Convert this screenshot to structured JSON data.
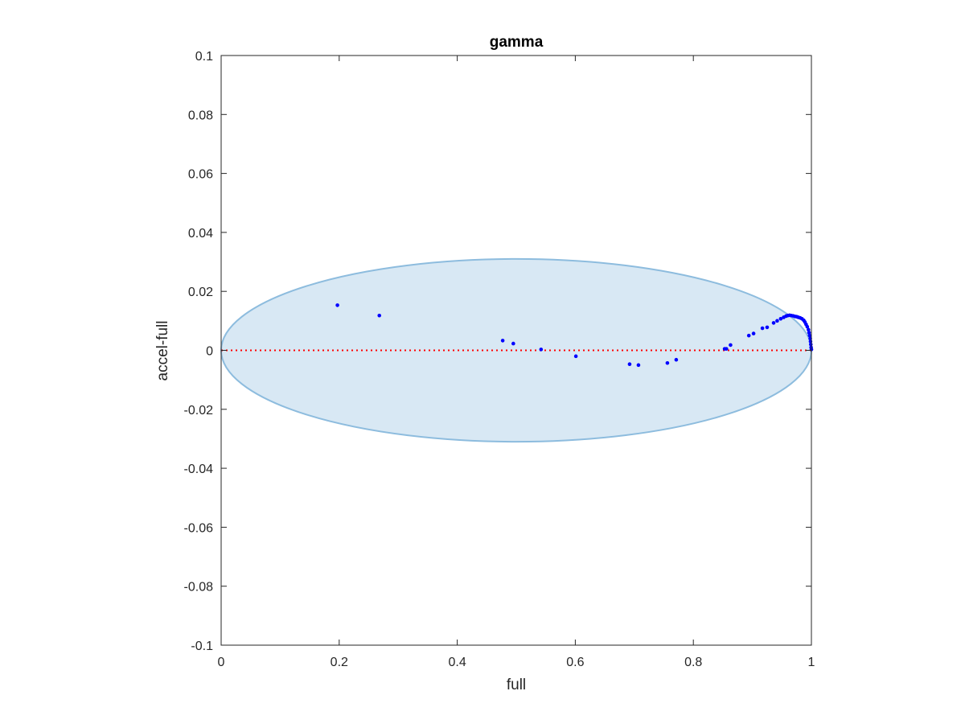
{
  "chart_data": {
    "type": "scatter",
    "title": "gamma",
    "xlabel": "full",
    "ylabel": "accel-full",
    "xlim": [
      0,
      1
    ],
    "ylim": [
      -0.1,
      0.1
    ],
    "xticks": [
      0,
      0.2,
      0.4,
      0.6,
      0.8,
      1
    ],
    "xtick_labels": [
      "0",
      "0.2",
      "0.4",
      "0.6",
      "0.8",
      "1"
    ],
    "yticks": [
      0.1,
      0.08,
      0.06,
      0.04,
      0.02,
      0,
      -0.02,
      -0.04,
      -0.06,
      -0.08,
      -0.1
    ],
    "ytick_labels": [
      "0.1",
      "0.08",
      "0.06",
      "0.04",
      "0.02",
      "0",
      "-0.02",
      "-0.04",
      "-0.06",
      "-0.08",
      "-0.1"
    ],
    "grid": false,
    "reference_line": {
      "y": 0,
      "style": "dotted",
      "color": "#ff0000"
    },
    "ellipse": {
      "cx": 0.5,
      "cy": 0,
      "rx": 0.5,
      "ry": 0.031,
      "fill": "#d8e8f4",
      "stroke": "#8dbcde"
    },
    "series": [
      {
        "color": "#0000ff",
        "points": [
          [
            0.197,
            0.0153
          ],
          [
            0.268,
            0.0118
          ],
          [
            0.477,
            0.0033
          ],
          [
            0.495,
            0.0023
          ],
          [
            0.542,
            0.0003
          ],
          [
            0.601,
            -0.002
          ],
          [
            0.692,
            -0.0047
          ],
          [
            0.707,
            -0.005
          ],
          [
            0.756,
            -0.0043
          ],
          [
            0.771,
            -0.0032
          ],
          [
            0.853,
            0.0005
          ],
          [
            0.856,
            0.0005
          ],
          [
            0.863,
            0.0018
          ],
          [
            0.894,
            0.005
          ],
          [
            0.902,
            0.0057
          ],
          [
            0.917,
            0.0075
          ],
          [
            0.925,
            0.0078
          ],
          [
            0.936,
            0.0093
          ],
          [
            0.942,
            0.01
          ],
          [
            0.948,
            0.0107
          ],
          [
            0.953,
            0.0112
          ],
          [
            0.957,
            0.0116
          ],
          [
            0.96,
            0.0118
          ],
          [
            0.963,
            0.0119
          ],
          [
            0.966,
            0.0118
          ],
          [
            0.969,
            0.0117
          ],
          [
            0.972,
            0.0115
          ],
          [
            0.975,
            0.0114
          ],
          [
            0.978,
            0.0112
          ],
          [
            0.981,
            0.011
          ],
          [
            0.984,
            0.0107
          ],
          [
            0.987,
            0.0102
          ],
          [
            0.989,
            0.0096
          ],
          [
            0.991,
            0.0088
          ],
          [
            0.993,
            0.008
          ],
          [
            0.995,
            0.007
          ],
          [
            0.996,
            0.006
          ],
          [
            0.997,
            0.005
          ],
          [
            0.998,
            0.004
          ],
          [
            0.9985,
            0.003
          ],
          [
            0.999,
            0.002
          ],
          [
            0.9995,
            0.001
          ],
          [
            1.0,
            0.0003
          ]
        ]
      }
    ]
  }
}
